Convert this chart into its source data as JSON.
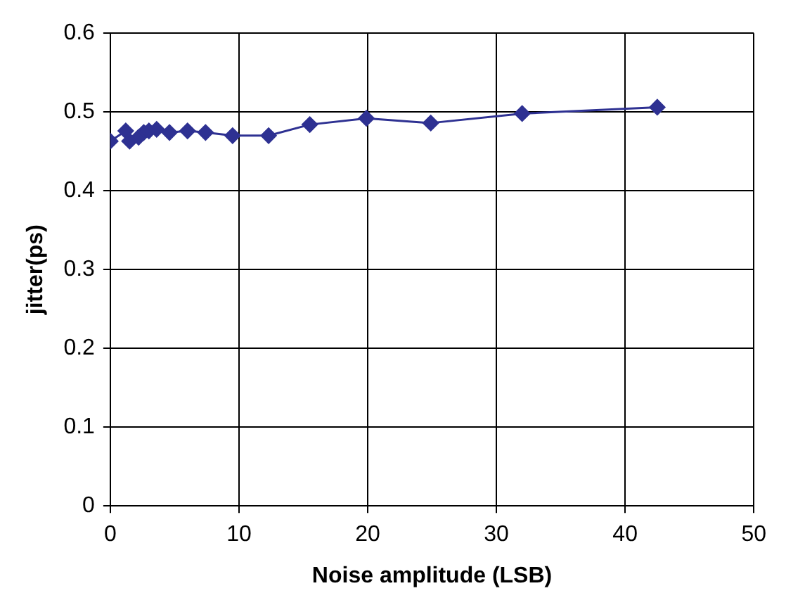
{
  "chart_data": {
    "type": "line",
    "xlabel": "Noise amplitude (LSB)",
    "ylabel": "jitter(ps)",
    "series": [
      {
        "color": "#2e3192",
        "x": [
          0,
          1.2,
          1.5,
          2.2,
          2.6,
          3.0,
          3.6,
          4.6,
          6.0,
          7.4,
          9.5,
          12.3,
          15.5,
          19.9,
          24.9,
          32.0,
          42.5
        ],
        "values": [
          0.463,
          0.476,
          0.463,
          0.468,
          0.474,
          0.476,
          0.478,
          0.474,
          0.476,
          0.474,
          0.47,
          0.47,
          0.484,
          0.492,
          0.486,
          0.498,
          0.506
        ]
      }
    ],
    "xlim": [
      0,
      50
    ],
    "xticks": [
      0,
      10,
      20,
      30,
      40,
      50
    ],
    "ylim": [
      0,
      0.6
    ],
    "yticks": [
      0,
      0.1,
      0.2,
      0.3,
      0.4,
      0.5,
      0.6
    ],
    "grid": true,
    "legend": false,
    "marker": "diamond",
    "line_style": "solid"
  }
}
